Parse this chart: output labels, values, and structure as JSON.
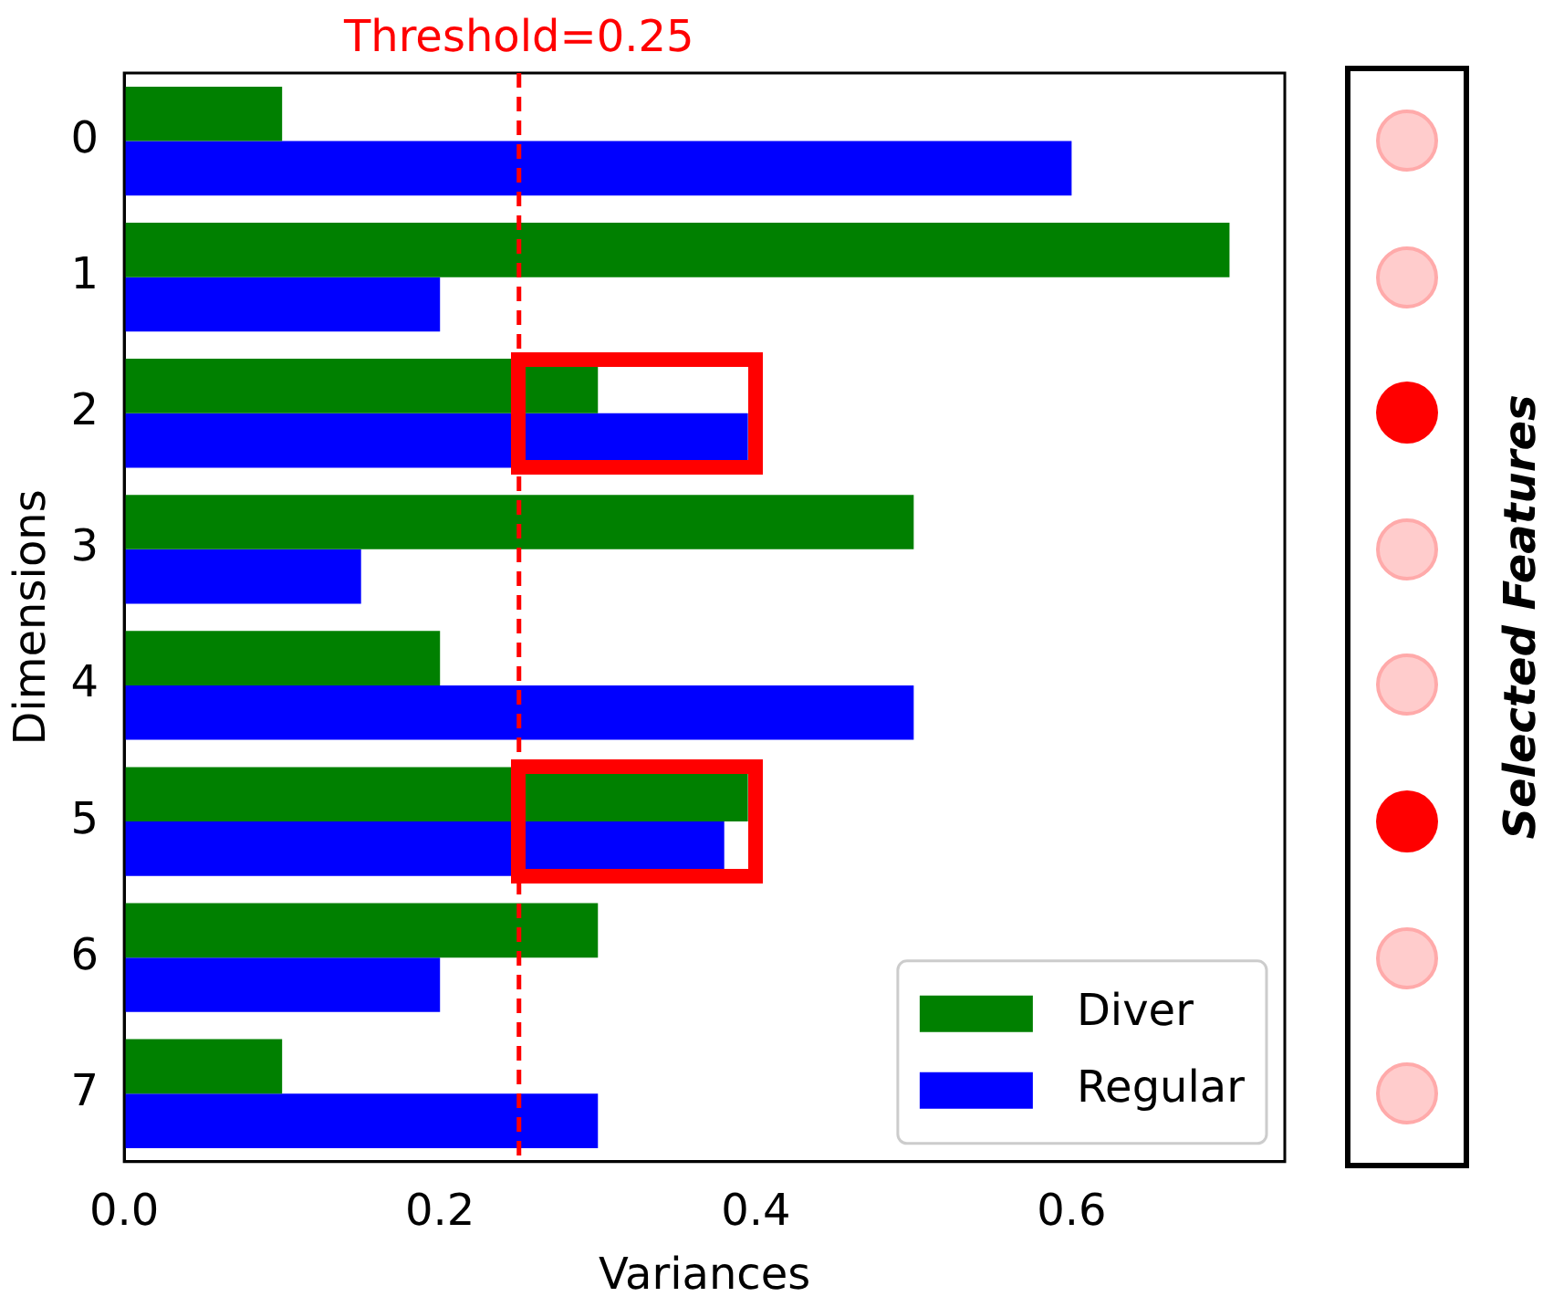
{
  "chart_data": {
    "type": "bar",
    "orientation": "horizontal",
    "xlabel": "Variances",
    "ylabel": "Dimensions",
    "categories": [
      "0",
      "1",
      "2",
      "3",
      "4",
      "5",
      "6",
      "7"
    ],
    "series": [
      {
        "name": "Diver",
        "color": "#008000",
        "values": [
          0.1,
          0.7,
          0.3,
          0.5,
          0.2,
          0.395,
          0.3,
          0.1
        ]
      },
      {
        "name": "Regular",
        "color": "#0000ff",
        "values": [
          0.6,
          0.2,
          0.395,
          0.15,
          0.5,
          0.38,
          0.2,
          0.3
        ]
      }
    ],
    "xlim": [
      0,
      0.735
    ],
    "xticks": [
      {
        "value": 0,
        "label": "0.0"
      },
      {
        "value": 0.2,
        "label": "0.2"
      },
      {
        "value": 0.4,
        "label": "0.4"
      },
      {
        "value": 0.6,
        "label": "0.6"
      }
    ],
    "ref_lines": [
      {
        "axis": "x",
        "value": 0.25,
        "label": "Threshold=0.25",
        "color": "#ff0000",
        "line_style": "dashed"
      }
    ],
    "annotations": [
      "Selected Features"
    ],
    "legend": "bottom right",
    "grid": false
  }
}
